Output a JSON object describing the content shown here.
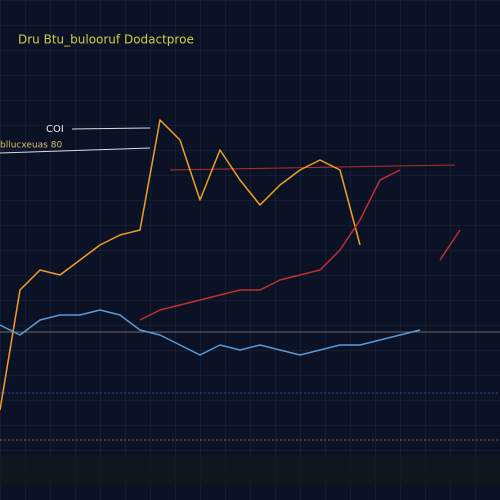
{
  "chart_data": {
    "type": "line",
    "title": "Dru Btu_bulooruf Dodactproe",
    "annotations": [
      "COI",
      "bllucxeuas 80"
    ],
    "categories": [
      null,
      null,
      null,
      null,
      null,
      null,
      null,
      null,
      null,
      null,
      null,
      null,
      null,
      null,
      null,
      null,
      null,
      null,
      null,
      null,
      null,
      null,
      null,
      null,
      null
    ],
    "series": [
      {
        "name": null,
        "color": "#f0a020",
        "values": [
          18,
          42,
          46,
          45,
          48,
          51,
          53,
          54,
          76,
          72,
          60,
          70,
          64,
          59,
          63,
          66,
          68,
          66,
          51,
          null,
          null,
          null,
          null,
          null,
          null
        ]
      },
      {
        "name": null,
        "color": "#5a9ad8",
        "values": [
          35,
          33,
          36,
          37,
          37,
          38,
          37,
          34,
          33,
          31,
          29,
          31,
          30,
          31,
          30,
          29,
          30,
          31,
          31,
          32,
          33,
          34,
          null,
          null,
          null
        ]
      },
      {
        "name": null,
        "color": "#c0302a",
        "values": [
          null,
          null,
          null,
          null,
          null,
          null,
          null,
          36,
          38,
          39,
          40,
          41,
          42,
          42,
          44,
          45,
          46,
          50,
          56,
          64,
          66,
          null,
          48,
          54,
          null
        ]
      }
    ],
    "ylim": [
      0,
      100
    ]
  }
}
